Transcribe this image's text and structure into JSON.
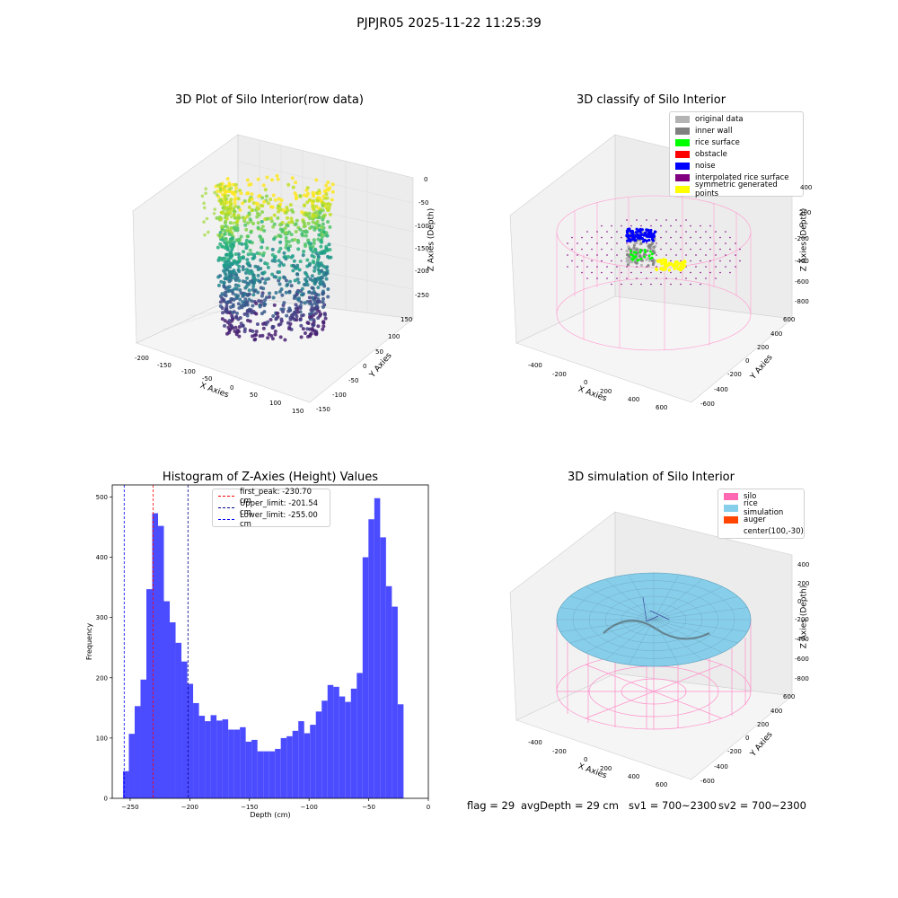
{
  "suptitle": "PJPJR05 2025-11-22 11:25:39",
  "plots": {
    "raw": {
      "title": "3D Plot of Silo Interior(row data)",
      "xlabel": "X Axies",
      "ylabel": "Y Axies",
      "zlabel": "Z Axies (Depth)",
      "xticks": [
        "-200",
        "-150",
        "-100",
        "-50",
        "0",
        "50",
        "100",
        "150"
      ],
      "yticks": [
        "150",
        "100",
        "50",
        "0",
        "-50",
        "-100",
        "-150"
      ],
      "zticks": [
        "0",
        "-50",
        "-100",
        "-150",
        "-200",
        "-250"
      ]
    },
    "classify": {
      "title": "3D classify of Silo Interior",
      "xlabel": "X Axies",
      "ylabel": "Y Axies",
      "zlabel": "Z Axies (Depth)",
      "xticks": [
        "-400",
        "-200",
        "0",
        "200",
        "400",
        "600"
      ],
      "yticks": [
        "600",
        "400",
        "200",
        "0",
        "-200",
        "-400",
        "-600"
      ],
      "zticks": [
        "400",
        "200",
        "0",
        "-200",
        "-400",
        "-600",
        "-800"
      ],
      "legend": [
        {
          "label": "original data",
          "color": "#b3b3b3"
        },
        {
          "label": "inner wall",
          "color": "#808080"
        },
        {
          "label": "rice surface",
          "color": "#00ff00"
        },
        {
          "label": "obstacle",
          "color": "#ff0000"
        },
        {
          "label": "noise",
          "color": "#0000ff"
        },
        {
          "label": "interpolated rice surface",
          "color": "#800080"
        },
        {
          "label": "symmetric generated points",
          "color": "#ffff00"
        }
      ]
    },
    "histogram": {
      "title": "Histogram of Z-Axies (Height) Values",
      "xlabel": "Depth (cm)",
      "ylabel": "Frequency",
      "legend": [
        {
          "label": "first_peak: -230.70 cm",
          "color": "#ff0000"
        },
        {
          "label": "Upper_limit: -201.54 cm",
          "color": "#00008b"
        },
        {
          "label": "Lower_limit: -255.00 cm",
          "color": "#0000ff"
        }
      ]
    },
    "simulation": {
      "title": "3D simulation of Silo Interior",
      "xlabel": "X Axies",
      "ylabel": "Y Axies",
      "zlabel": "Z Axies (Depth)",
      "xticks": [
        "-400",
        "-200",
        "0",
        "200",
        "400",
        "600"
      ],
      "yticks": [
        "600",
        "400",
        "200",
        "0",
        "-200",
        "-400",
        "-600"
      ],
      "zticks": [
        "400",
        "200",
        "0",
        "-200",
        "-400",
        "-600",
        "-800"
      ],
      "legend": [
        {
          "label": "silo",
          "color": "#ff69b4"
        },
        {
          "label": "rice simulation",
          "color": "#87ceeb"
        },
        {
          "label": "auger",
          "color": "#ff4500"
        },
        {
          "label": "center(100,-30)",
          "color": ""
        }
      ]
    }
  },
  "status": {
    "flag": "flag = 29",
    "avg": "avgDepth = 29 cm",
    "sv1": "sv1 = 700~2300",
    "sv2": "sv2 = 700~2300"
  },
  "chart_data": {
    "type": "bar",
    "title": "Histogram of Z-Axies (Height) Values",
    "xlabel": "Depth (cm)",
    "ylabel": "Frequency",
    "xlim": [
      -265,
      0
    ],
    "ylim": [
      0,
      520
    ],
    "xticks": [
      -250,
      -200,
      -150,
      -100,
      -50,
      0
    ],
    "yticks": [
      0,
      100,
      200,
      300,
      400,
      500
    ],
    "bin_start": -256,
    "bin_width": 4.9,
    "values": [
      45,
      107,
      153,
      197,
      347,
      473,
      452,
      327,
      292,
      258,
      227,
      190,
      158,
      137,
      128,
      138,
      129,
      131,
      114,
      114,
      118,
      94,
      97,
      78,
      78,
      78,
      82,
      100,
      103,
      112,
      128,
      108,
      122,
      144,
      162,
      188,
      185,
      169,
      160,
      182,
      208,
      400,
      463,
      498,
      433,
      352,
      318,
      156
    ],
    "vlines": [
      {
        "label": "first_peak: -230.70 cm",
        "x": -230.7,
        "color": "#ff0000"
      },
      {
        "label": "Upper_limit: -201.54 cm",
        "x": -201.54,
        "color": "#00008b"
      },
      {
        "label": "Lower_limit: -255.00 cm",
        "x": -255.0,
        "color": "#0000ff"
      }
    ]
  }
}
